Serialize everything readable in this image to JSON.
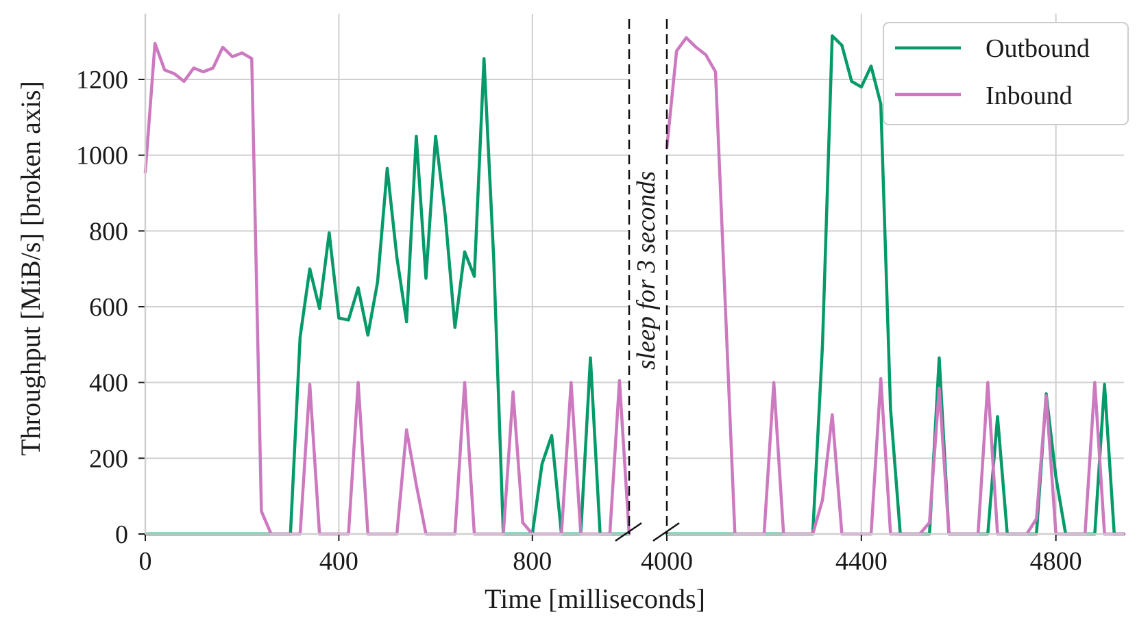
{
  "chart_data": {
    "type": "line",
    "ylabel": "Throughput [MiB/s] [broken axis]",
    "xlabel": "Time [milliseconds]",
    "annotation": "sleep for 3 seconds",
    "ylim": [
      0,
      1400
    ],
    "yticks": [
      0,
      200,
      400,
      600,
      800,
      1000,
      1200
    ],
    "grid": true,
    "legend_position": "top-right",
    "panels": [
      {
        "xlim": [
          0,
          1000
        ],
        "xticks": [
          0,
          400,
          800
        ]
      },
      {
        "xlim": [
          4000,
          4940
        ],
        "xticks": [
          4000,
          4400,
          4800
        ]
      }
    ],
    "series": [
      {
        "name": "Outbound",
        "color": "#069a6b",
        "segments": [
          [
            [
              0,
              0
            ],
            [
              300,
              0
            ],
            [
              320,
              520
            ],
            [
              340,
              700
            ],
            [
              360,
              595
            ],
            [
              380,
              795
            ],
            [
              400,
              570
            ],
            [
              420,
              565
            ],
            [
              440,
              650
            ],
            [
              460,
              525
            ],
            [
              480,
              665
            ],
            [
              500,
              965
            ],
            [
              520,
              730
            ],
            [
              540,
              560
            ],
            [
              560,
              1050
            ],
            [
              580,
              675
            ],
            [
              600,
              1050
            ],
            [
              620,
              840
            ],
            [
              640,
              545
            ],
            [
              660,
              745
            ],
            [
              680,
              680
            ],
            [
              700,
              1255
            ],
            [
              720,
              730
            ],
            [
              740,
              0
            ],
            [
              780,
              0
            ],
            [
              800,
              0
            ],
            [
              820,
              185
            ],
            [
              840,
              260
            ],
            [
              860,
              0
            ],
            [
              900,
              0
            ],
            [
              920,
              465
            ],
            [
              940,
              0
            ],
            [
              1000,
              0
            ]
          ],
          [
            [
              4000,
              0
            ],
            [
              4300,
              0
            ],
            [
              4320,
              500
            ],
            [
              4340,
              1315
            ],
            [
              4360,
              1290
            ],
            [
              4380,
              1195
            ],
            [
              4400,
              1180
            ],
            [
              4420,
              1235
            ],
            [
              4440,
              1135
            ],
            [
              4460,
              330
            ],
            [
              4480,
              0
            ],
            [
              4540,
              0
            ],
            [
              4560,
              465
            ],
            [
              4580,
              0
            ],
            [
              4660,
              0
            ],
            [
              4680,
              310
            ],
            [
              4700,
              0
            ],
            [
              4760,
              0
            ],
            [
              4780,
              370
            ],
            [
              4800,
              150
            ],
            [
              4820,
              0
            ],
            [
              4880,
              0
            ],
            [
              4900,
              395
            ],
            [
              4920,
              0
            ],
            [
              4940,
              0
            ]
          ]
        ]
      },
      {
        "name": "Inbound",
        "color": "#cc79c0",
        "segments": [
          [
            [
              0,
              955
            ],
            [
              20,
              1295
            ],
            [
              40,
              1225
            ],
            [
              60,
              1215
            ],
            [
              80,
              1195
            ],
            [
              100,
              1230
            ],
            [
              120,
              1220
            ],
            [
              140,
              1230
            ],
            [
              160,
              1285
            ],
            [
              180,
              1260
            ],
            [
              200,
              1270
            ],
            [
              220,
              1255
            ],
            [
              240,
              60
            ],
            [
              260,
              0
            ],
            [
              320,
              0
            ],
            [
              340,
              395
            ],
            [
              360,
              0
            ],
            [
              420,
              0
            ],
            [
              440,
              400
            ],
            [
              460,
              0
            ],
            [
              520,
              0
            ],
            [
              540,
              275
            ],
            [
              560,
              130
            ],
            [
              580,
              0
            ],
            [
              640,
              0
            ],
            [
              660,
              400
            ],
            [
              680,
              0
            ],
            [
              740,
              0
            ],
            [
              760,
              375
            ],
            [
              780,
              30
            ],
            [
              800,
              0
            ],
            [
              860,
              0
            ],
            [
              880,
              400
            ],
            [
              900,
              0
            ],
            [
              960,
              0
            ],
            [
              980,
              405
            ],
            [
              1000,
              0
            ]
          ],
          [
            [
              4000,
              1020
            ],
            [
              4020,
              1275
            ],
            [
              4040,
              1310
            ],
            [
              4060,
              1285
            ],
            [
              4080,
              1265
            ],
            [
              4100,
              1220
            ],
            [
              4140,
              0
            ],
            [
              4200,
              0
            ],
            [
              4220,
              400
            ],
            [
              4240,
              0
            ],
            [
              4300,
              0
            ],
            [
              4320,
              90
            ],
            [
              4340,
              315
            ],
            [
              4360,
              0
            ],
            [
              4420,
              0
            ],
            [
              4440,
              410
            ],
            [
              4460,
              0
            ],
            [
              4520,
              0
            ],
            [
              4540,
              30
            ],
            [
              4560,
              385
            ],
            [
              4580,
              0
            ],
            [
              4640,
              0
            ],
            [
              4660,
              400
            ],
            [
              4680,
              0
            ],
            [
              4740,
              0
            ],
            [
              4760,
              40
            ],
            [
              4780,
              365
            ],
            [
              4800,
              0
            ],
            [
              4860,
              0
            ],
            [
              4880,
              400
            ],
            [
              4900,
              0
            ],
            [
              4940,
              0
            ]
          ]
        ]
      }
    ]
  }
}
